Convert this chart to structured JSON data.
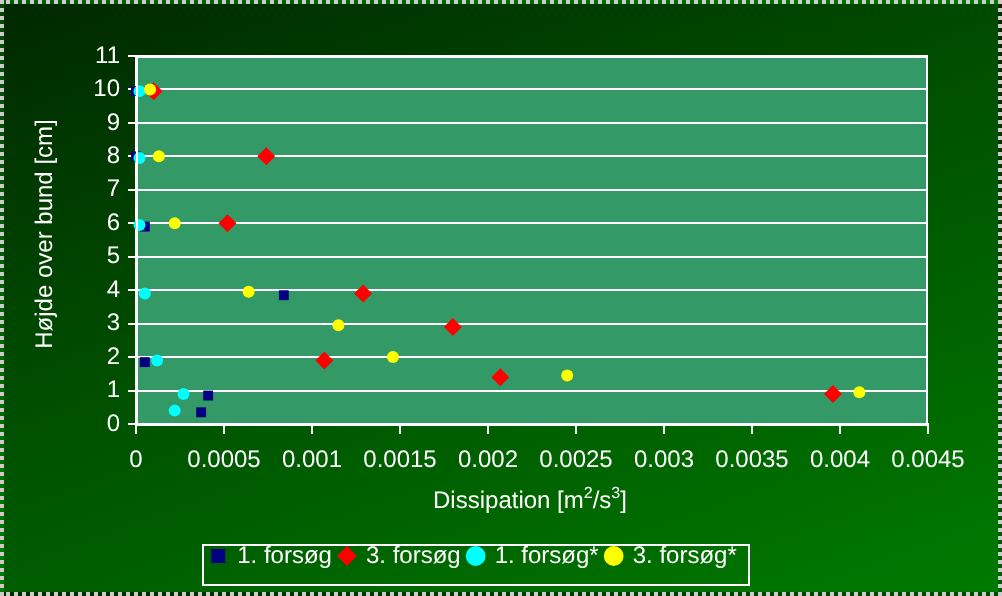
{
  "chart_data": {
    "type": "scatter",
    "xlabel": "Dissipation [m$^{2}$/s$^{3}$]",
    "ylabel": "Højde over bund [cm]",
    "xlim": [
      0,
      0.0045
    ],
    "xticks": [
      0,
      0.0005,
      0.001,
      0.0015,
      0.002,
      0.0025,
      0.003,
      0.0035,
      0.004,
      0.0045
    ],
    "ylim": [
      0,
      11
    ],
    "yticks": [
      0,
      1,
      2,
      3,
      4,
      5,
      6,
      7,
      8,
      9,
      10,
      11
    ],
    "grid": "y",
    "legend": "bottom",
    "series": [
      {
        "name": "1. forsøg",
        "color": "#000080",
        "marker": "square",
        "x": [
          0,
          0,
          5e-05,
          0.00084,
          5e-05,
          0.00041,
          0.00037
        ],
        "values": [
          9.95,
          8,
          5.9,
          3.85,
          1.85,
          0.85,
          0.35
        ]
      },
      {
        "name": "3. forsøg",
        "color": "#ff0000",
        "marker": "diamond",
        "x": [
          0.0001,
          0.00074,
          0.00052,
          0.00129,
          0.0018,
          0.00107,
          0.00207,
          0.00396
        ],
        "values": [
          9.95,
          8,
          6,
          3.9,
          2.9,
          1.9,
          1.4,
          0.9
        ]
      },
      {
        "name": "1. forsøg*",
        "color": "#00ffff",
        "marker": "circle",
        "x": [
          2e-05,
          2e-05,
          2e-05,
          5e-05,
          0.00012,
          0.00027,
          0.00022
        ],
        "values": [
          9.95,
          7.95,
          5.95,
          3.9,
          1.9,
          0.9,
          0.4
        ]
      },
      {
        "name": "3. forsøg*",
        "color": "#ffff00",
        "marker": "circle",
        "x": [
          8e-05,
          0.00013,
          0.00022,
          0.00064,
          0.00115,
          0.00146,
          0.00245,
          0.00411
        ],
        "values": [
          10,
          8,
          6,
          3.95,
          2.95,
          2,
          1.45,
          0.95
        ]
      }
    ]
  }
}
